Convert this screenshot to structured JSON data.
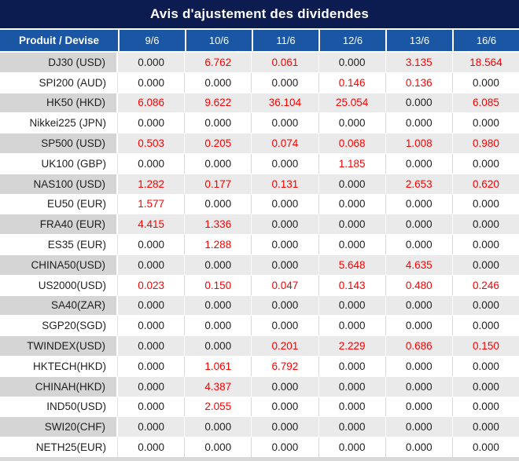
{
  "title": "Avis d'ajustement des dividendes",
  "header": {
    "product_label": "Produit / Devise",
    "dates": [
      "9/6",
      "10/6",
      "11/6",
      "12/6",
      "13/6",
      "16/6"
    ]
  },
  "rows": [
    {
      "product": "DJ30 (USD)",
      "values": [
        "0.000",
        "6.762",
        "0.061",
        "0.000",
        "3.135",
        "18.564"
      ]
    },
    {
      "product": "SPI200 (AUD)",
      "values": [
        "0.000",
        "0.000",
        "0.000",
        "0.146",
        "0.136",
        "0.000"
      ]
    },
    {
      "product": "HK50 (HKD)",
      "values": [
        "6.086",
        "9.622",
        "36.104",
        "25.054",
        "0.000",
        "6.085"
      ]
    },
    {
      "product": "Nikkei225 (JPN)",
      "values": [
        "0.000",
        "0.000",
        "0.000",
        "0.000",
        "0.000",
        "0.000"
      ]
    },
    {
      "product": "SP500 (USD)",
      "values": [
        "0.503",
        "0.205",
        "0.074",
        "0.068",
        "1.008",
        "0.980"
      ]
    },
    {
      "product": "UK100 (GBP)",
      "values": [
        "0.000",
        "0.000",
        "0.000",
        "1.185",
        "0.000",
        "0.000"
      ]
    },
    {
      "product": "NAS100 (USD)",
      "values": [
        "1.282",
        "0.177",
        "0.131",
        "0.000",
        "2.653",
        "0.620"
      ]
    },
    {
      "product": "EU50 (EUR)",
      "values": [
        "1.577",
        "0.000",
        "0.000",
        "0.000",
        "0.000",
        "0.000"
      ]
    },
    {
      "product": "FRA40 (EUR)",
      "values": [
        "4.415",
        "1.336",
        "0.000",
        "0.000",
        "0.000",
        "0.000"
      ]
    },
    {
      "product": "ES35 (EUR)",
      "values": [
        "0.000",
        "1.288",
        "0.000",
        "0.000",
        "0.000",
        "0.000"
      ]
    },
    {
      "product": "CHINA50(USD)",
      "values": [
        "0.000",
        "0.000",
        "0.000",
        "5.648",
        "4.635",
        "0.000"
      ]
    },
    {
      "product": "US2000(USD)",
      "values": [
        "0.023",
        "0.150",
        "0.047",
        "0.143",
        "0.480",
        "0.246"
      ]
    },
    {
      "product": "SA40(ZAR)",
      "values": [
        "0.000",
        "0.000",
        "0.000",
        "0.000",
        "0.000",
        "0.000"
      ]
    },
    {
      "product": "SGP20(SGD)",
      "values": [
        "0.000",
        "0.000",
        "0.000",
        "0.000",
        "0.000",
        "0.000"
      ]
    },
    {
      "product": "TWINDEX(USD)",
      "values": [
        "0.000",
        "0.000",
        "0.201",
        "2.229",
        "0.686",
        "0.150"
      ]
    },
    {
      "product": "HKTECH(HKD)",
      "values": [
        "0.000",
        "1.061",
        "6.792",
        "0.000",
        "0.000",
        "0.000"
      ]
    },
    {
      "product": "CHINAH(HKD)",
      "values": [
        "0.000",
        "4.387",
        "0.000",
        "0.000",
        "0.000",
        "0.000"
      ]
    },
    {
      "product": "IND50(USD)",
      "values": [
        "0.000",
        "2.055",
        "0.000",
        "0.000",
        "0.000",
        "0.000"
      ]
    },
    {
      "product": "SWI20(CHF)",
      "values": [
        "0.000",
        "0.000",
        "0.000",
        "0.000",
        "0.000",
        "0.000"
      ]
    },
    {
      "product": "NETH25(EUR)",
      "values": [
        "0.000",
        "0.000",
        "0.000",
        "0.000",
        "0.000",
        "0.000"
      ]
    }
  ],
  "colors": {
    "title_bg": "#0c1c50",
    "header_bg": "#1a56a4",
    "striped_label_bg": "#d5d5d5",
    "striped_value_bg": "#eaeaea",
    "value_default": "#1f1f1f",
    "value_nonzero": "#ff0000"
  }
}
